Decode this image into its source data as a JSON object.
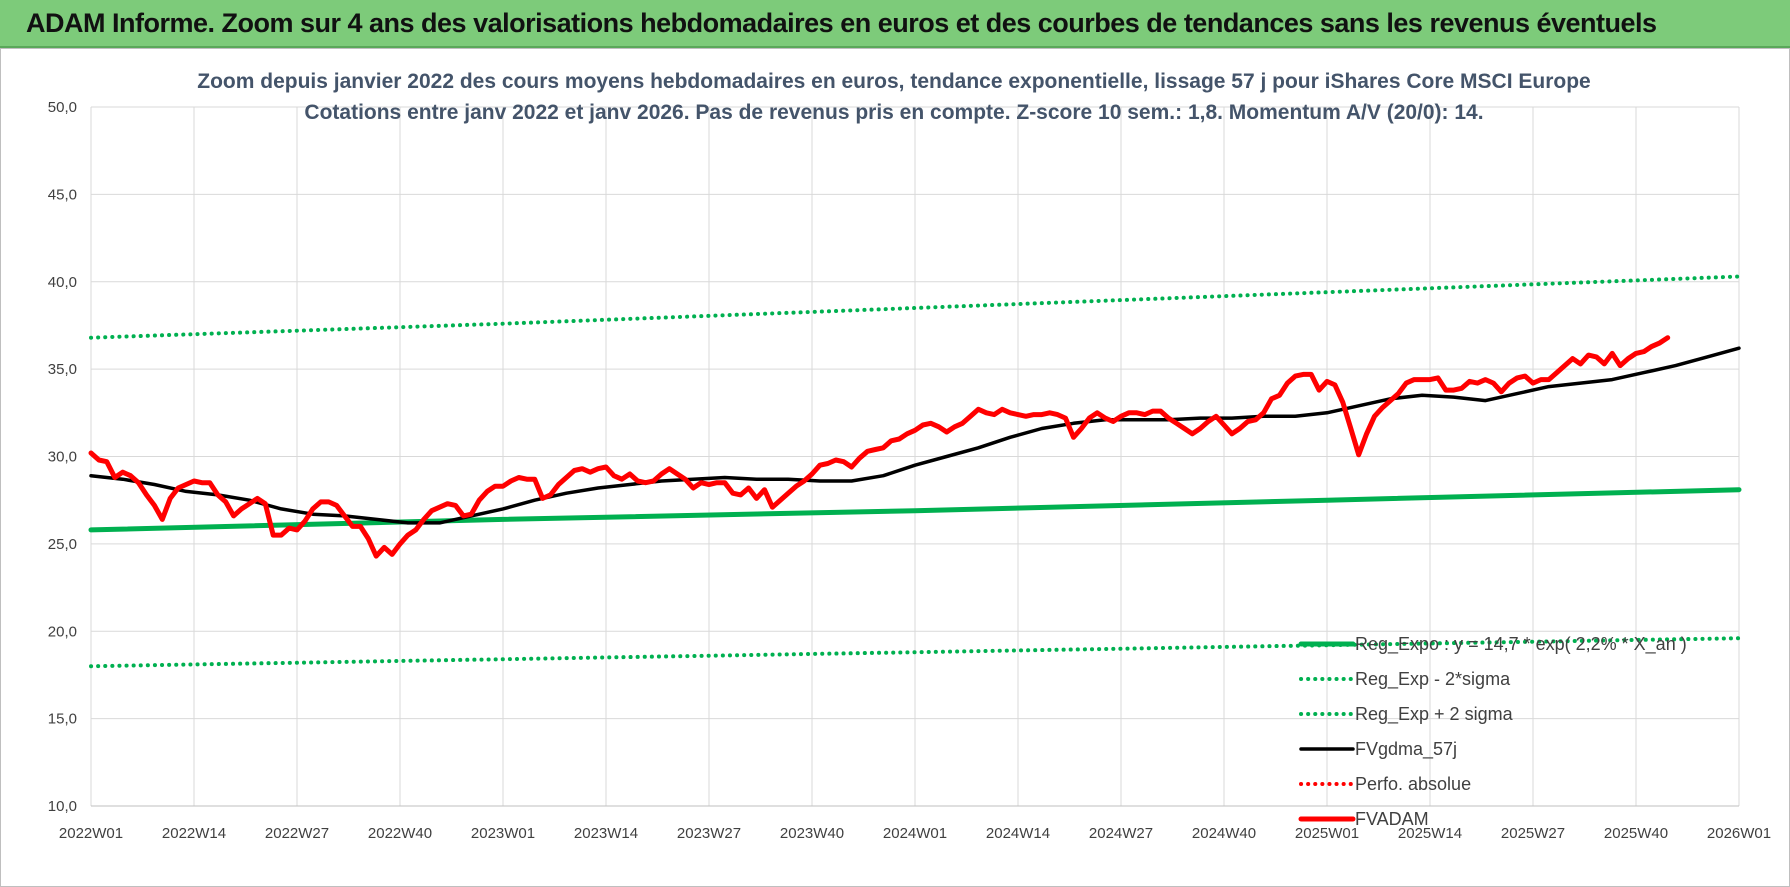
{
  "banner": {
    "title": "ADAM Informe. Zoom sur 4 ans des valorisations hebdomadaires en euros et des courbes de tendances sans les revenus éventuels",
    "color": "#7dcb7a"
  },
  "chart_data": {
    "type": "line",
    "title": "",
    "subtitle_lines": [
      "Zoom depuis janvier 2022 des cours moyens hebdomadaires en euros, tendance exponentielle, lissage 57 j pour iShares Core MSCI Europe",
      "Cotations entre janv 2022 et janv 2026. Pas de revenus pris en compte. Z-score 10 sem.: 1,8. Momentum A/V (20/0): 14."
    ],
    "xlabel": "",
    "ylabel": "",
    "x_ticks": [
      "2022W01",
      "2022W14",
      "2022W27",
      "2022W40",
      "2023W01",
      "2023W14",
      "2023W27",
      "2023W40",
      "2024W01",
      "2024W14",
      "2024W27",
      "2024W40",
      "2025W01",
      "2025W14",
      "2025W27",
      "2025W40",
      "2026W01"
    ],
    "y_ticks": [
      "10,0",
      "15,0",
      "20,0",
      "25,0",
      "30,0",
      "35,0",
      "40,0",
      "45,0",
      "50,0"
    ],
    "ylim": [
      10,
      50
    ],
    "grid": true,
    "legend_position": "bottom-right",
    "series": [
      {
        "name": "Reg_Expo : y = 14,7 * exp( 2,2% *  X_an )",
        "color": "#00b050",
        "style": "solid-thick",
        "points": [
          [
            0,
            25.8
          ],
          [
            52,
            26.4
          ],
          [
            104,
            26.9
          ],
          [
            156,
            27.5
          ],
          [
            208,
            28.1
          ]
        ]
      },
      {
        "name": "Reg_Exp - 2*sigma",
        "color": "#00b050",
        "style": "dotted",
        "points": [
          [
            0,
            18.0
          ],
          [
            52,
            18.4
          ],
          [
            104,
            18.8
          ],
          [
            156,
            19.2
          ],
          [
            208,
            19.6
          ]
        ]
      },
      {
        "name": "Reg_Exp + 2 sigma",
        "color": "#00b050",
        "style": "dotted",
        "points": [
          [
            0,
            36.8
          ],
          [
            52,
            37.6
          ],
          [
            104,
            38.5
          ],
          [
            156,
            39.4
          ],
          [
            208,
            40.3
          ]
        ]
      },
      {
        "name": "FVgdma_57j",
        "color": "#000000",
        "style": "solid",
        "points": [
          [
            0,
            28.9
          ],
          [
            4,
            28.7
          ],
          [
            8,
            28.4
          ],
          [
            12,
            28.0
          ],
          [
            16,
            27.8
          ],
          [
            20,
            27.5
          ],
          [
            24,
            27.0
          ],
          [
            28,
            26.7
          ],
          [
            32,
            26.6
          ],
          [
            36,
            26.4
          ],
          [
            40,
            26.2
          ],
          [
            44,
            26.2
          ],
          [
            48,
            26.6
          ],
          [
            52,
            27.0
          ],
          [
            56,
            27.5
          ],
          [
            60,
            27.9
          ],
          [
            64,
            28.2
          ],
          [
            68,
            28.4
          ],
          [
            72,
            28.6
          ],
          [
            76,
            28.7
          ],
          [
            80,
            28.8
          ],
          [
            84,
            28.7
          ],
          [
            88,
            28.7
          ],
          [
            92,
            28.6
          ],
          [
            96,
            28.6
          ],
          [
            100,
            28.9
          ],
          [
            104,
            29.5
          ],
          [
            108,
            30.0
          ],
          [
            112,
            30.5
          ],
          [
            116,
            31.1
          ],
          [
            120,
            31.6
          ],
          [
            124,
            31.9
          ],
          [
            128,
            32.1
          ],
          [
            132,
            32.1
          ],
          [
            136,
            32.1
          ],
          [
            140,
            32.2
          ],
          [
            144,
            32.2
          ],
          [
            148,
            32.3
          ],
          [
            152,
            32.3
          ],
          [
            156,
            32.5
          ],
          [
            160,
            32.9
          ],
          [
            164,
            33.3
          ],
          [
            168,
            33.5
          ],
          [
            172,
            33.4
          ],
          [
            176,
            33.2
          ],
          [
            180,
            33.6
          ],
          [
            184,
            34.0
          ],
          [
            188,
            34.2
          ],
          [
            192,
            34.4
          ],
          [
            196,
            34.8
          ],
          [
            200,
            35.2
          ],
          [
            204,
            35.7
          ],
          [
            208,
            36.2
          ]
        ]
      },
      {
        "name": "Perfo. absolue",
        "color": "#ff0000",
        "style": "dotted",
        "points": []
      },
      {
        "name": "FVADAM",
        "color": "#ff0000",
        "style": "solid-thick",
        "points": [
          [
            0,
            30.2
          ],
          [
            1,
            29.8
          ],
          [
            2,
            29.7
          ],
          [
            3,
            28.8
          ],
          [
            4,
            29.1
          ],
          [
            5,
            28.9
          ],
          [
            6,
            28.5
          ],
          [
            7,
            27.8
          ],
          [
            8,
            27.2
          ],
          [
            9,
            26.4
          ],
          [
            10,
            27.6
          ],
          [
            11,
            28.2
          ],
          [
            12,
            28.4
          ],
          [
            13,
            28.6
          ],
          [
            14,
            28.5
          ],
          [
            15,
            28.5
          ],
          [
            16,
            27.8
          ],
          [
            17,
            27.4
          ],
          [
            18,
            26.6
          ],
          [
            19,
            27.0
          ],
          [
            20,
            27.3
          ],
          [
            21,
            27.6
          ],
          [
            22,
            27.3
          ],
          [
            23,
            25.5
          ],
          [
            24,
            25.5
          ],
          [
            25,
            25.9
          ],
          [
            26,
            25.8
          ],
          [
            27,
            26.3
          ],
          [
            28,
            27.0
          ],
          [
            29,
            27.4
          ],
          [
            30,
            27.4
          ],
          [
            31,
            27.2
          ],
          [
            32,
            26.6
          ],
          [
            33,
            26.0
          ],
          [
            34,
            26.0
          ],
          [
            35,
            25.3
          ],
          [
            36,
            24.3
          ],
          [
            37,
            24.8
          ],
          [
            38,
            24.4
          ],
          [
            39,
            25.0
          ],
          [
            40,
            25.5
          ],
          [
            41,
            25.8
          ],
          [
            42,
            26.4
          ],
          [
            43,
            26.9
          ],
          [
            44,
            27.1
          ],
          [
            45,
            27.3
          ],
          [
            46,
            27.2
          ],
          [
            47,
            26.6
          ],
          [
            48,
            26.7
          ],
          [
            49,
            27.5
          ],
          [
            50,
            28.0
          ],
          [
            51,
            28.3
          ],
          [
            52,
            28.3
          ],
          [
            53,
            28.6
          ],
          [
            54,
            28.8
          ],
          [
            55,
            28.7
          ],
          [
            56,
            28.7
          ],
          [
            57,
            27.6
          ],
          [
            58,
            27.8
          ],
          [
            59,
            28.4
          ],
          [
            60,
            28.8
          ],
          [
            61,
            29.2
          ],
          [
            62,
            29.3
          ],
          [
            63,
            29.1
          ],
          [
            64,
            29.3
          ],
          [
            65,
            29.4
          ],
          [
            66,
            28.9
          ],
          [
            67,
            28.7
          ],
          [
            68,
            29.0
          ],
          [
            69,
            28.6
          ],
          [
            70,
            28.5
          ],
          [
            71,
            28.6
          ],
          [
            72,
            29.0
          ],
          [
            73,
            29.3
          ],
          [
            74,
            29.0
          ],
          [
            75,
            28.7
          ],
          [
            76,
            28.2
          ],
          [
            77,
            28.5
          ],
          [
            78,
            28.4
          ],
          [
            79,
            28.5
          ],
          [
            80,
            28.5
          ],
          [
            81,
            27.9
          ],
          [
            82,
            27.8
          ],
          [
            83,
            28.2
          ],
          [
            84,
            27.6
          ],
          [
            85,
            28.1
          ],
          [
            86,
            27.1
          ],
          [
            87,
            27.5
          ],
          [
            88,
            27.9
          ],
          [
            89,
            28.3
          ],
          [
            90,
            28.6
          ],
          [
            91,
            29.0
          ],
          [
            92,
            29.5
          ],
          [
            93,
            29.6
          ],
          [
            94,
            29.8
          ],
          [
            95,
            29.7
          ],
          [
            96,
            29.4
          ],
          [
            97,
            29.9
          ],
          [
            98,
            30.3
          ],
          [
            99,
            30.4
          ],
          [
            100,
            30.5
          ],
          [
            101,
            30.9
          ],
          [
            102,
            31.0
          ],
          [
            103,
            31.3
          ],
          [
            104,
            31.5
          ],
          [
            105,
            31.8
          ],
          [
            106,
            31.9
          ],
          [
            107,
            31.7
          ],
          [
            108,
            31.4
          ],
          [
            109,
            31.7
          ],
          [
            110,
            31.9
          ],
          [
            111,
            32.3
          ],
          [
            112,
            32.7
          ],
          [
            113,
            32.5
          ],
          [
            114,
            32.4
          ],
          [
            115,
            32.7
          ],
          [
            116,
            32.5
          ],
          [
            117,
            32.4
          ],
          [
            118,
            32.3
          ],
          [
            119,
            32.4
          ],
          [
            120,
            32.4
          ],
          [
            121,
            32.5
          ],
          [
            122,
            32.4
          ],
          [
            123,
            32.2
          ],
          [
            124,
            31.1
          ],
          [
            125,
            31.6
          ],
          [
            126,
            32.2
          ],
          [
            127,
            32.5
          ],
          [
            128,
            32.2
          ],
          [
            129,
            32.0
          ],
          [
            130,
            32.3
          ],
          [
            131,
            32.5
          ],
          [
            132,
            32.5
          ],
          [
            133,
            32.4
          ],
          [
            134,
            32.6
          ],
          [
            135,
            32.6
          ],
          [
            136,
            32.2
          ],
          [
            137,
            31.9
          ],
          [
            138,
            31.6
          ],
          [
            139,
            31.3
          ],
          [
            140,
            31.6
          ],
          [
            141,
            32.0
          ],
          [
            142,
            32.3
          ],
          [
            143,
            31.8
          ],
          [
            144,
            31.3
          ],
          [
            145,
            31.6
          ],
          [
            146,
            32.0
          ],
          [
            147,
            32.1
          ],
          [
            148,
            32.5
          ],
          [
            149,
            33.3
          ],
          [
            150,
            33.5
          ],
          [
            151,
            34.2
          ],
          [
            152,
            34.6
          ],
          [
            153,
            34.7
          ],
          [
            154,
            34.7
          ],
          [
            155,
            33.8
          ],
          [
            156,
            34.3
          ],
          [
            157,
            34.1
          ],
          [
            158,
            33.1
          ],
          [
            159,
            31.6
          ],
          [
            160,
            30.1
          ],
          [
            161,
            31.3
          ],
          [
            162,
            32.3
          ],
          [
            163,
            32.8
          ],
          [
            164,
            33.2
          ],
          [
            165,
            33.6
          ],
          [
            166,
            34.2
          ],
          [
            167,
            34.4
          ],
          [
            168,
            34.4
          ],
          [
            169,
            34.4
          ],
          [
            170,
            34.5
          ],
          [
            171,
            33.8
          ],
          [
            172,
            33.8
          ],
          [
            173,
            33.9
          ],
          [
            174,
            34.3
          ],
          [
            175,
            34.2
          ],
          [
            176,
            34.4
          ],
          [
            177,
            34.2
          ],
          [
            178,
            33.7
          ],
          [
            179,
            34.2
          ],
          [
            180,
            34.5
          ],
          [
            181,
            34.6
          ],
          [
            182,
            34.2
          ],
          [
            183,
            34.4
          ],
          [
            184,
            34.4
          ],
          [
            185,
            34.8
          ],
          [
            186,
            35.2
          ],
          [
            187,
            35.6
          ],
          [
            188,
            35.3
          ],
          [
            189,
            35.8
          ],
          [
            190,
            35.7
          ],
          [
            191,
            35.3
          ],
          [
            192,
            35.9
          ],
          [
            193,
            35.2
          ],
          [
            194,
            35.6
          ],
          [
            195,
            35.9
          ],
          [
            196,
            36.0
          ],
          [
            197,
            36.3
          ],
          [
            198,
            36.5
          ],
          [
            199,
            36.8
          ]
        ]
      }
    ]
  }
}
